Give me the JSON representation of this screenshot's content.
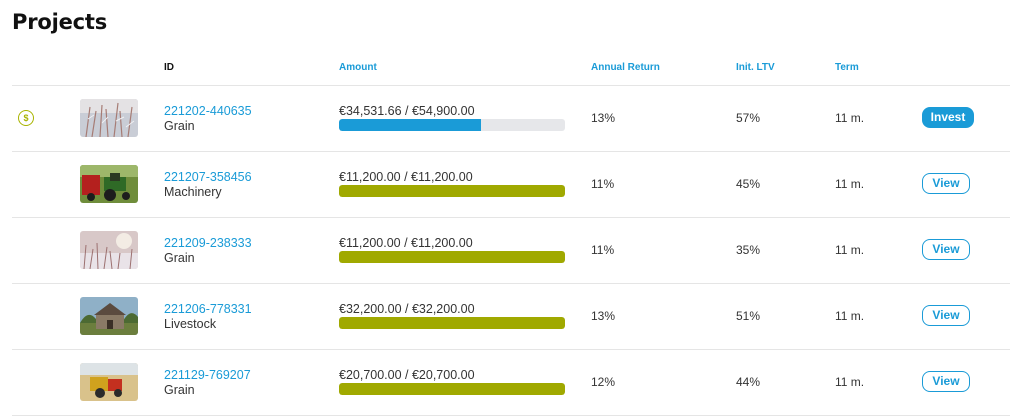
{
  "page": {
    "title": "Projects"
  },
  "columns": {
    "id": "ID",
    "amount": "Amount",
    "annual_return": "Annual Return",
    "init_ltv": "Init. LTV",
    "term": "Term"
  },
  "colors": {
    "accent": "#1a9bd7",
    "funded": "#a0a900",
    "progress": "#1a9bd7",
    "track": "#e6e7ea"
  },
  "projects": [
    {
      "id": "221202-440635",
      "category": "Grain",
      "amount": "€34,531.66 / €54,900.00",
      "progress": 0.629,
      "annual_return": "13%",
      "ltv": "57%",
      "term": "11 m.",
      "action": "Invest",
      "action_style": "solid",
      "icon": "coin-icon",
      "image": "frosted-grass-image"
    },
    {
      "id": "221207-358456",
      "category": "Machinery",
      "amount": "€11,200.00 / €11,200.00",
      "progress": 1.0,
      "annual_return": "11%",
      "ltv": "45%",
      "term": "11 m.",
      "action": "View",
      "action_style": "outline",
      "image": "tractor-image"
    },
    {
      "id": "221209-238333",
      "category": "Grain",
      "amount": "€11,200.00 / €11,200.00",
      "progress": 1.0,
      "annual_return": "11%",
      "ltv": "35%",
      "term": "11 m.",
      "action": "View",
      "action_style": "outline",
      "image": "winter-field-image"
    },
    {
      "id": "221206-778331",
      "category": "Livestock",
      "amount": "€32,200.00 / €32,200.00",
      "progress": 1.0,
      "annual_return": "13%",
      "ltv": "51%",
      "term": "11 m.",
      "action": "View",
      "action_style": "outline",
      "image": "barn-image"
    },
    {
      "id": "221129-769207",
      "category": "Grain",
      "amount": "€20,700.00 / €20,700.00",
      "progress": 1.0,
      "annual_return": "12%",
      "ltv": "44%",
      "term": "11 m.",
      "action": "View",
      "action_style": "outline",
      "image": "harvester-image"
    }
  ]
}
